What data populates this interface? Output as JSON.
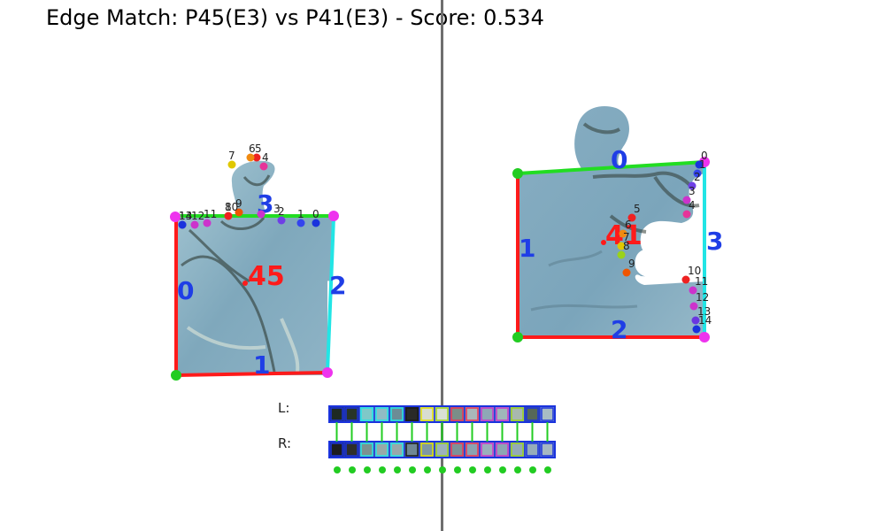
{
  "title": "Edge Match: P45(E3) vs P41(E3) - Score: 0.534",
  "left_piece": {
    "id": "45",
    "edges": [
      {
        "label": "0",
        "color": "#ff1a1a"
      },
      {
        "label": "1",
        "color": "#ff1a1a"
      },
      {
        "label": "2",
        "color": "#22e5e5"
      },
      {
        "label": "3",
        "color": "#22dd22"
      }
    ],
    "points": [
      "0",
      "1",
      "2",
      "3",
      "4",
      "5",
      "6",
      "7",
      "8",
      "9",
      "10",
      "11",
      "12",
      "13",
      "14"
    ]
  },
  "right_piece": {
    "id": "41",
    "edges": [
      {
        "label": "0",
        "color": "#22dd22"
      },
      {
        "label": "1",
        "color": "#ff1a1a"
      },
      {
        "label": "2",
        "color": "#ff1a1a"
      },
      {
        "label": "3",
        "color": "#22e5e5"
      }
    ],
    "points": [
      "0",
      "1",
      "2",
      "3",
      "4",
      "5",
      "6",
      "7",
      "8",
      "9",
      "10",
      "11",
      "12",
      "13",
      "14"
    ]
  },
  "strips": {
    "left_label": "L:",
    "right_label": "R:",
    "left_colors": [
      "#1e2a22",
      "#283528",
      "#7fc8c8",
      "#90bcc4",
      "#6c8c96",
      "#2a2a28",
      "#d8ddd0",
      "#d8e0d4",
      "#7a8e88",
      "#a9b7ba",
      "#8ea8b6",
      "#9fb6b9",
      "#a8b8ae",
      "#566858",
      "#a8bcc4"
    ],
    "right_colors": [
      "#1c1c1e",
      "#2e2e2a",
      "#7c9290",
      "#98aaa8",
      "#9aa8aa",
      "#6f8894",
      "#7e98a4",
      "#9cb2bc",
      "#7c9298",
      "#8aa4b2",
      "#9ab0bc",
      "#8ca6b4",
      "#94aab8",
      "#96acba",
      "#a6b8c2"
    ],
    "link_colors": [
      "#22cc22",
      "#22cc22",
      "#22cc22",
      "#22cc22",
      "#22cc22",
      "#22cc22",
      "#22cc22",
      "#22cc22",
      "#22cc22",
      "#22cc22",
      "#22cc22",
      "#22cc22",
      "#22cc22",
      "#22cc22",
      "#22cc22"
    ]
  }
}
